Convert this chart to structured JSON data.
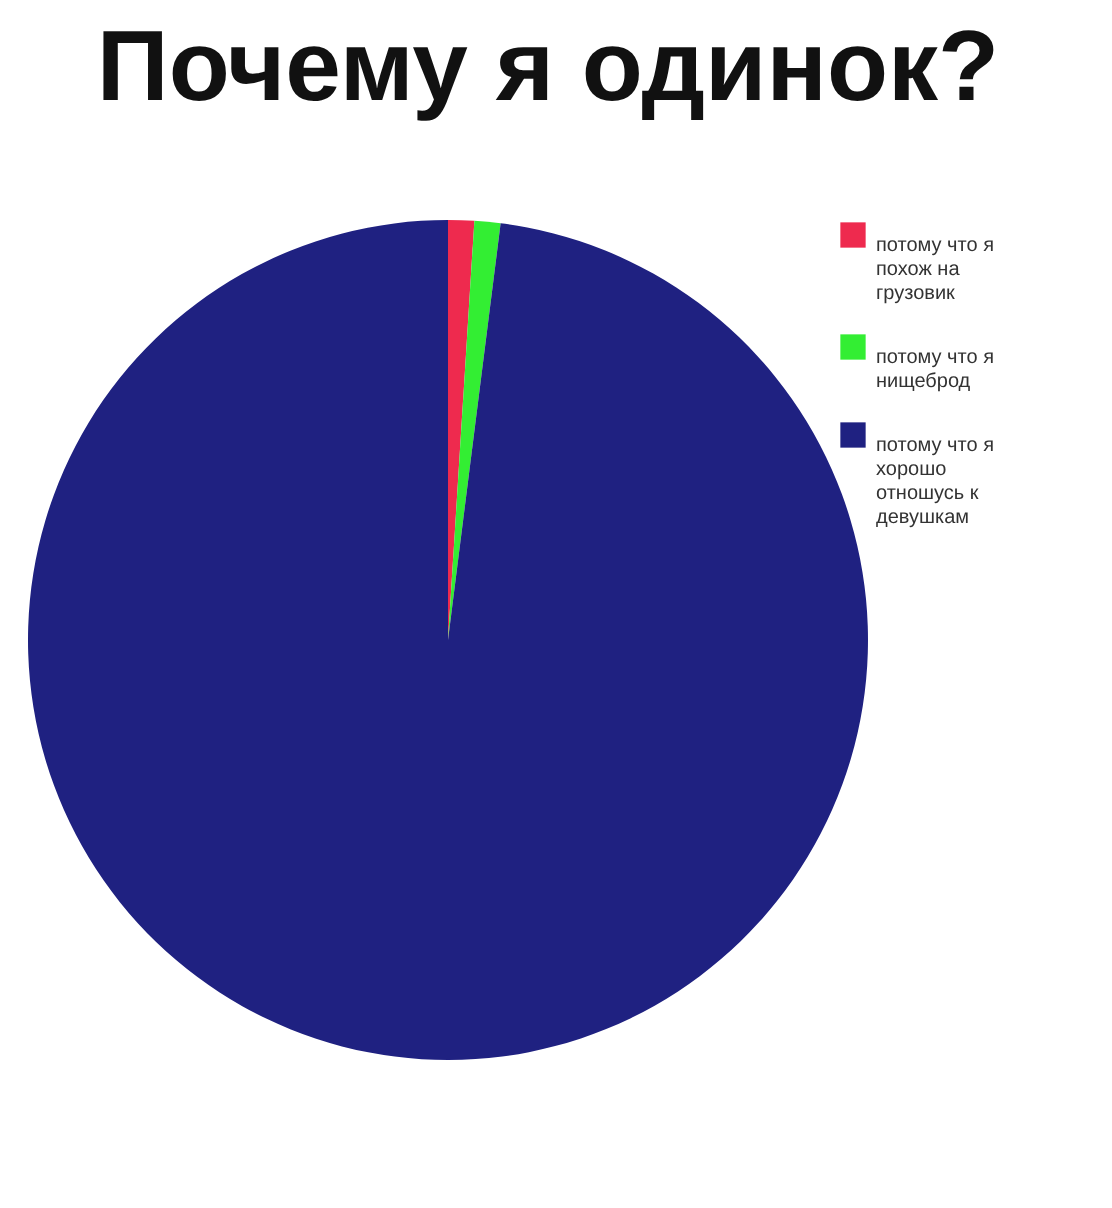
{
  "chart_data": {
    "type": "pie",
    "title": "Почему я одинок?",
    "categories": [
      "потому что я похож на грузовик",
      "потому что я нищеброд",
      "потому что я хорошо отношусь к девушкам"
    ],
    "values": [
      1,
      1,
      98
    ],
    "colors": [
      "#ee2a4e",
      "#33ee33",
      "#1f2181"
    ],
    "legend": "right"
  }
}
